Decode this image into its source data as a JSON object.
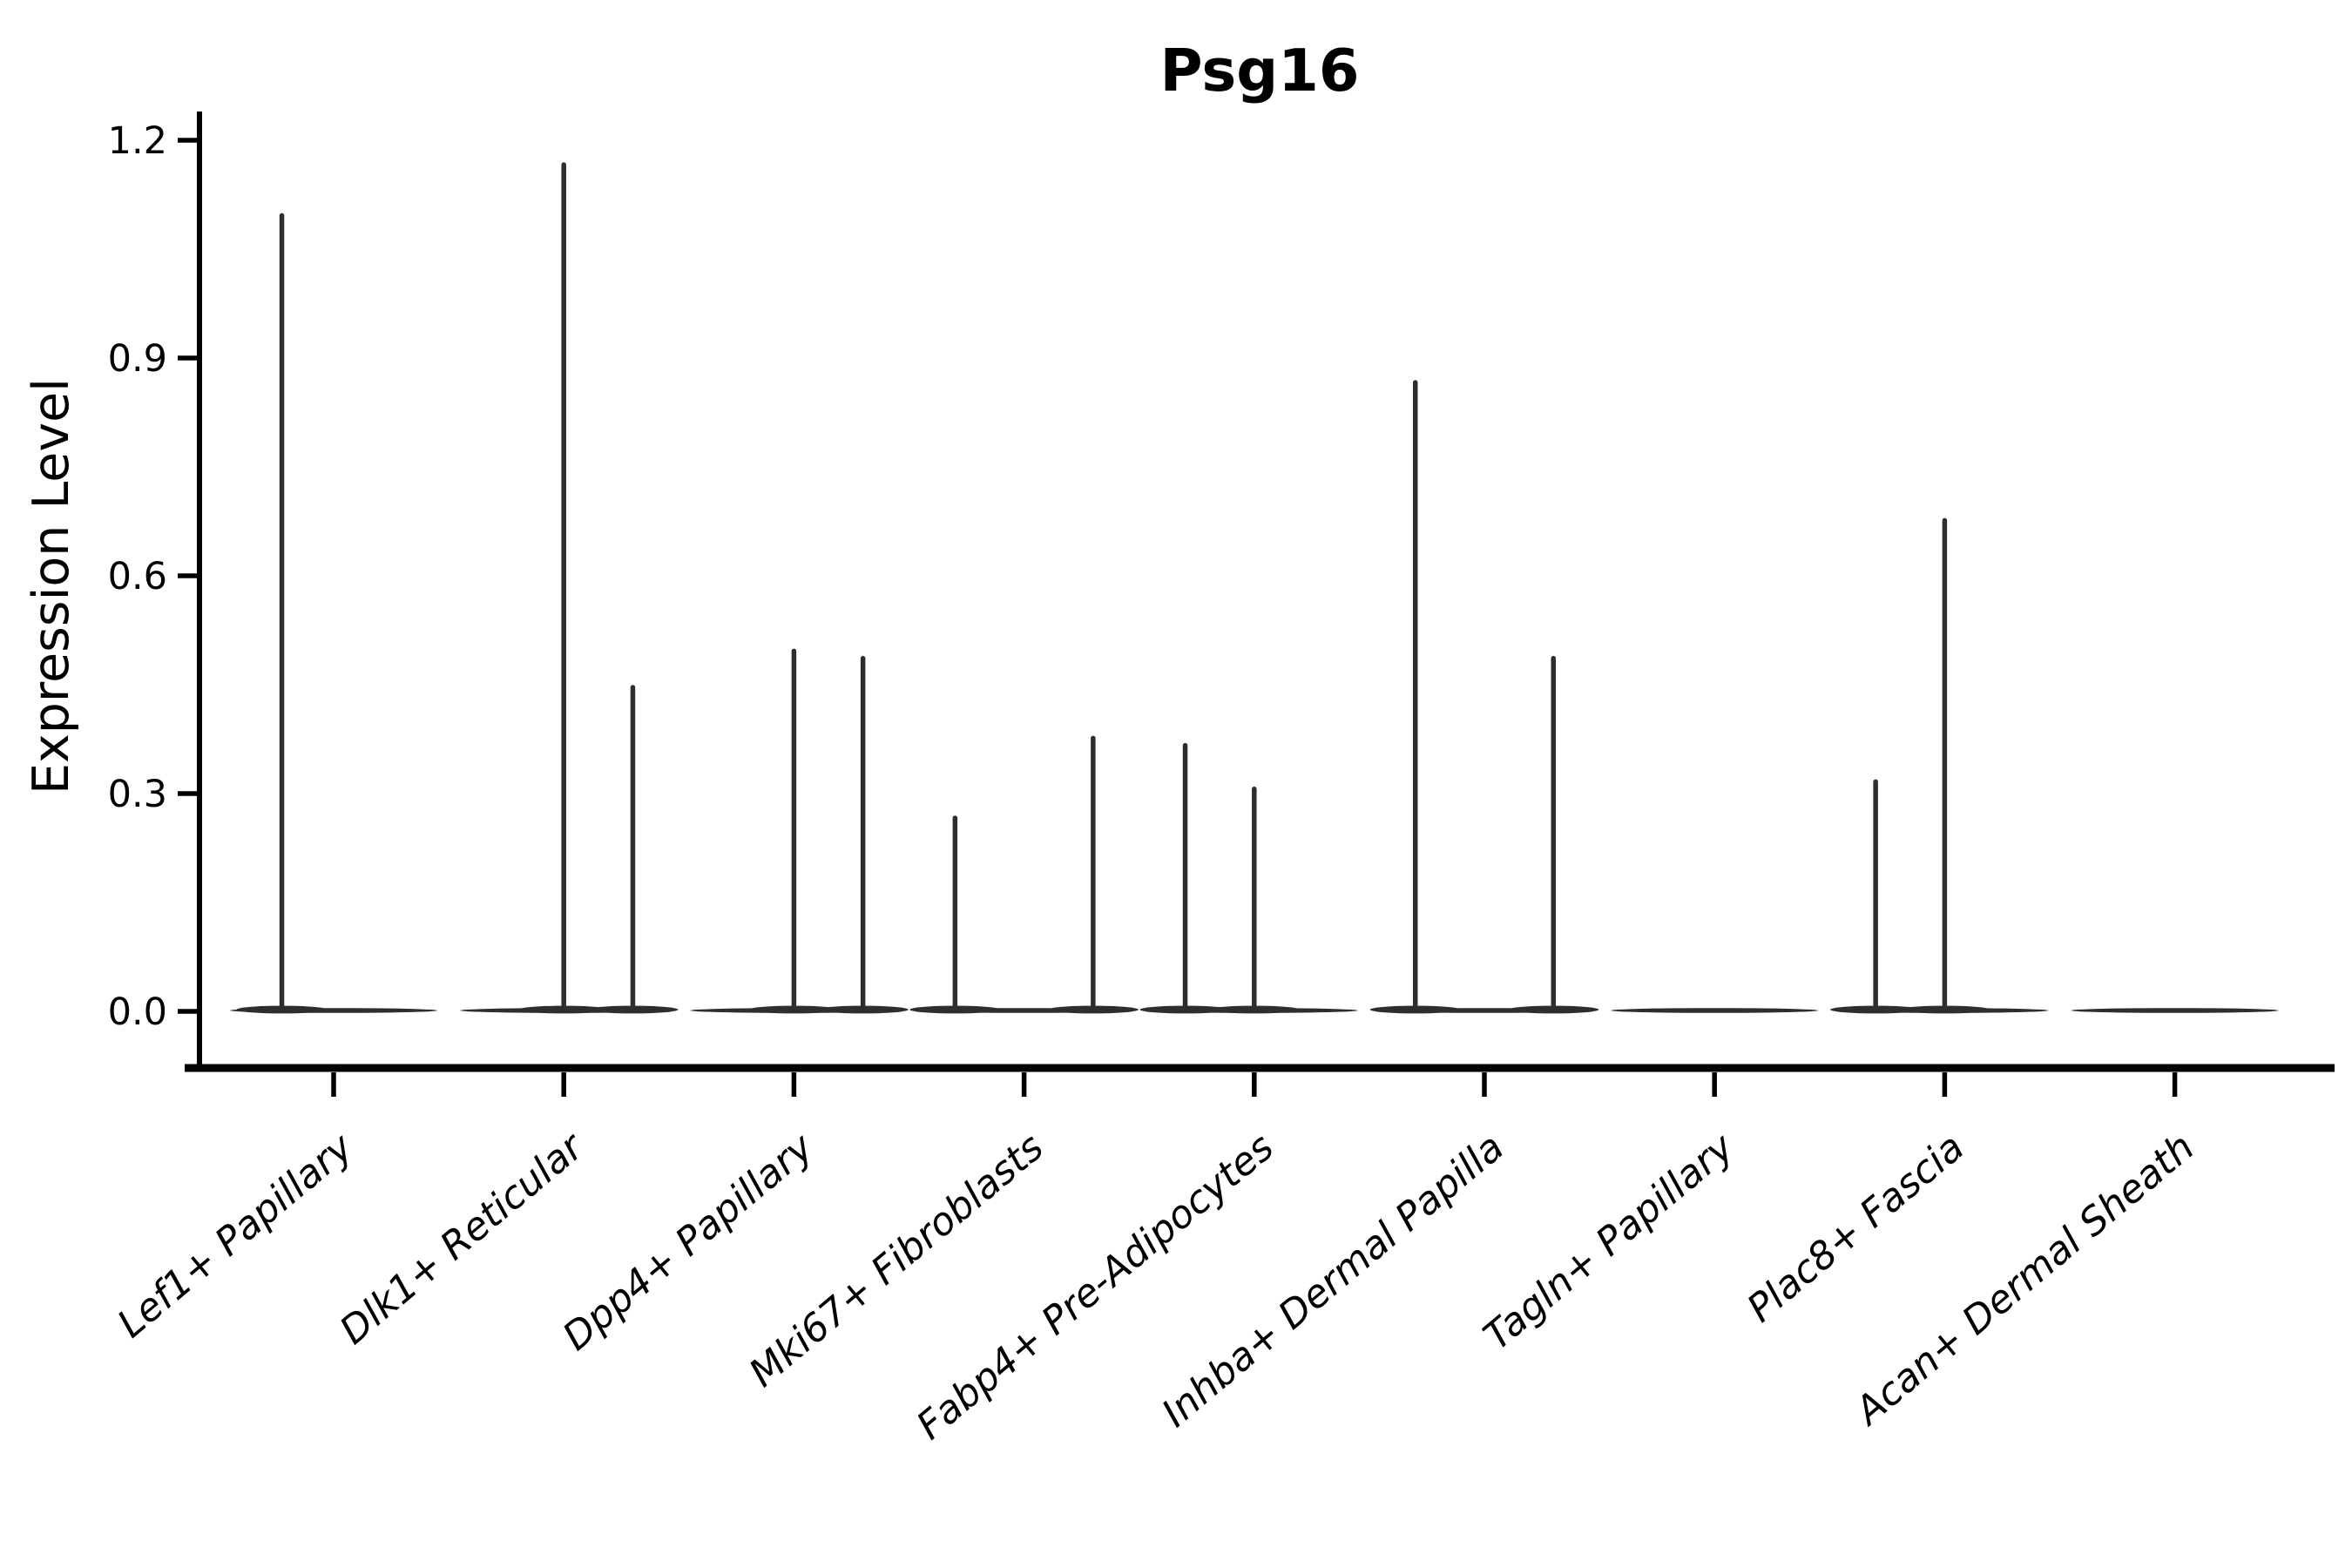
{
  "chart_data": {
    "type": "violin",
    "title": "Psg16",
    "ylabel": "Expression Level",
    "xlabel": "",
    "grid": false,
    "legend": "none",
    "background_color": "#ffffff",
    "axis_color": "#000000",
    "violin_color": "#2e2e2e",
    "ytick_labels": [
      "0.0",
      "0.3",
      "0.6",
      "0.9",
      "1.2"
    ],
    "ytick_values": [
      0.0,
      0.3,
      0.6,
      0.9,
      1.2
    ],
    "ylim": [
      -0.075,
      1.24
    ],
    "categories": [
      "Lef1+ Papillary",
      "Dlk1+ Reticular",
      "Dpp4+ Papillary",
      "Mki67+ Fibroblasts",
      "Fabp4+ Pre-Adipocytes",
      "Inhba+ Dermal Papilla",
      "Tagln+ Papillary",
      "Plac8+ Fascia",
      "Acan+ Dermal Sheath"
    ],
    "violins": [
      {
        "category": "Lef1+ Papillary",
        "sub": [
          {
            "offset_frac": -0.225,
            "max": 1.1
          },
          {
            "offset_frac": 0.225,
            "max": 0
          }
        ]
      },
      {
        "category": "Dlk1+ Reticular",
        "sub": [
          {
            "offset_frac": -0.3,
            "max": 0
          },
          {
            "offset_frac": 0,
            "max": 1.17
          },
          {
            "offset_frac": 0.3,
            "max": 0.45
          }
        ]
      },
      {
        "category": "Dpp4+ Papillary",
        "sub": [
          {
            "offset_frac": -0.3,
            "max": 0
          },
          {
            "offset_frac": 0,
            "max": 0.5
          },
          {
            "offset_frac": 0.3,
            "max": 0.49
          }
        ]
      },
      {
        "category": "Mki67+ Fibroblasts",
        "sub": [
          {
            "offset_frac": -0.3,
            "max": 0.27
          },
          {
            "offset_frac": 0,
            "max": 0
          },
          {
            "offset_frac": 0.3,
            "max": 0.38
          }
        ]
      },
      {
        "category": "Fabp4+ Pre-Adipocytes",
        "sub": [
          {
            "offset_frac": -0.3,
            "max": 0.37
          },
          {
            "offset_frac": 0,
            "max": 0.31
          },
          {
            "offset_frac": 0.3,
            "max": 0
          }
        ]
      },
      {
        "category": "Inhba+ Dermal Papilla",
        "sub": [
          {
            "offset_frac": -0.3,
            "max": 0.87
          },
          {
            "offset_frac": 0,
            "max": 0
          },
          {
            "offset_frac": 0.3,
            "max": 0.49
          }
        ]
      },
      {
        "category": "Tagln+ Papillary",
        "sub": [
          {
            "offset_frac": -0.3,
            "max": 0
          },
          {
            "offset_frac": 0,
            "max": 0
          },
          {
            "offset_frac": 0.3,
            "max": 0
          }
        ]
      },
      {
        "category": "Plac8+ Fascia",
        "sub": [
          {
            "offset_frac": -0.3,
            "max": 0.32
          },
          {
            "offset_frac": 0,
            "max": 0.68
          },
          {
            "offset_frac": 0.3,
            "max": 0
          }
        ]
      },
      {
        "category": "Acan+ Dermal Sheath",
        "sub": [
          {
            "offset_frac": -0.3,
            "max": 0
          },
          {
            "offset_frac": 0,
            "max": 0
          },
          {
            "offset_frac": 0.3,
            "max": 0
          }
        ]
      }
    ]
  }
}
